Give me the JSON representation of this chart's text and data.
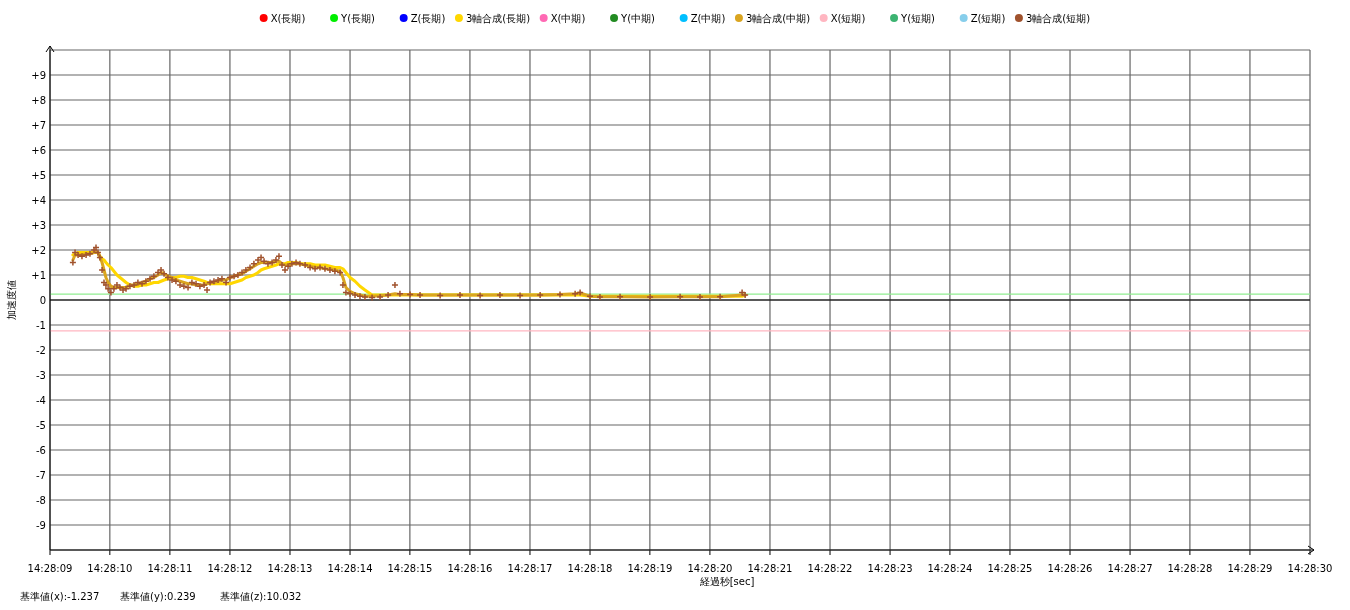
{
  "chart_data": {
    "type": "line",
    "xlabel": "経過秒[sec]",
    "ylabel": "加速度値",
    "legend": "top",
    "grid": true,
    "xlim": [
      14.469167,
      14.475
    ],
    "xticks": [
      {
        "value": 14.469167,
        "label": "14:28:09"
      },
      {
        "value": 14.469444,
        "label": "14:28:10"
      },
      {
        "value": 14.469722,
        "label": "14:28:11"
      },
      {
        "value": 14.47,
        "label": "14:28:12"
      },
      {
        "value": 14.470278,
        "label": "14:28:13"
      },
      {
        "value": 14.470556,
        "label": "14:28:14"
      },
      {
        "value": 14.470833,
        "label": "14:28:15"
      },
      {
        "value": 14.471111,
        "label": "14:28:16"
      },
      {
        "value": 14.471389,
        "label": "14:28:17"
      },
      {
        "value": 14.471667,
        "label": "14:28:18"
      },
      {
        "value": 14.471944,
        "label": "14:28:19"
      },
      {
        "value": 14.472222,
        "label": "14:28:20"
      },
      {
        "value": 14.4725,
        "label": "14:28:21"
      },
      {
        "value": 14.472778,
        "label": "14:28:22"
      },
      {
        "value": 14.473056,
        "label": "14:28:23"
      },
      {
        "value": 14.473333,
        "label": "14:28:24"
      },
      {
        "value": 14.473611,
        "label": "14:28:25"
      },
      {
        "value": 14.473889,
        "label": "14:28:26"
      },
      {
        "value": 14.474167,
        "label": "14:28:27"
      },
      {
        "value": 14.474444,
        "label": "14:28:28"
      },
      {
        "value": 14.474722,
        "label": "14:28:29"
      },
      {
        "value": 14.475,
        "label": "14:28:30"
      }
    ],
    "ylim": [
      -10,
      10
    ],
    "yticks": [
      {
        "value": -10,
        "label": null
      },
      -9,
      -8,
      -7,
      -6,
      -5,
      -4,
      -3,
      -2,
      -1,
      0,
      {
        "value": 1,
        "label": "+1"
      },
      {
        "value": 2,
        "label": "+2"
      },
      {
        "value": 3,
        "label": "+3"
      },
      {
        "value": 4,
        "label": "+4"
      },
      {
        "value": 5,
        "label": "+5"
      },
      {
        "value": 6,
        "label": "+6"
      },
      {
        "value": 7,
        "label": "+7"
      },
      {
        "value": 8,
        "label": "+8"
      },
      {
        "value": 9,
        "label": "+9"
      },
      {
        "value": 10,
        "label": null
      }
    ],
    "x": [
      14.469273,
      14.469283,
      14.469297,
      14.469315,
      14.469334,
      14.469352,
      14.469371,
      14.46938,
      14.469389,
      14.469398,
      14.469408,
      14.469417,
      14.469426,
      14.469436,
      14.469449,
      14.469463,
      14.469477,
      14.469491,
      14.469505,
      14.469519,
      14.469537,
      14.469556,
      14.469574,
      14.469593,
      14.469611,
      14.46963,
      14.469648,
      14.469667,
      14.469681,
      14.469695,
      14.469713,
      14.469732,
      14.46975,
      14.469769,
      14.469787,
      14.469806,
      14.469824,
      14.469843,
      14.469861,
      14.46988,
      14.469894,
      14.469908,
      14.469926,
      14.469945,
      14.469963,
      14.469982,
      14.47,
      14.470019,
      14.470037,
      14.470056,
      14.470074,
      14.470093,
      14.470111,
      14.47013,
      14.470144,
      14.470158,
      14.470176,
      14.470195,
      14.470213,
      14.470227,
      14.470241,
      14.470255,
      14.470269,
      14.470287,
      14.470306,
      14.470324,
      14.470348,
      14.470371,
      14.470394,
      14.470417,
      14.47044,
      14.470463,
      14.470486,
      14.47051,
      14.470523,
      14.470537,
      14.470556,
      14.470579,
      14.470602,
      14.470625,
      14.470658,
      14.470695,
      14.470732,
      14.470764,
      14.470787,
      14.470834,
      14.47088,
      14.470973,
      14.471065,
      14.471158,
      14.47125,
      14.471343,
      14.471436,
      14.471528,
      14.471598,
      14.471621,
      14.471667,
      14.471713,
      14.471806,
      14.471945,
      14.472084,
      14.472176,
      14.472269,
      14.472371,
      14.472385
    ],
    "series": [
      {
        "name": "X(長期)",
        "color": "#ff0000",
        "type": "line",
        "values": [
          null,
          null,
          null,
          null,
          null,
          null,
          null,
          null,
          null,
          null,
          null,
          null,
          null,
          null,
          null,
          null,
          null,
          null,
          null,
          null,
          null,
          null,
          null,
          null,
          null,
          null,
          null,
          null,
          null,
          null,
          null,
          null,
          null,
          null,
          null,
          null,
          null,
          null,
          null,
          null,
          null,
          null,
          null,
          null,
          null,
          null,
          null,
          null,
          null,
          null,
          null,
          null,
          null,
          null,
          null,
          null,
          null,
          null,
          null,
          null,
          null,
          null,
          null,
          null,
          null,
          null,
          null,
          null,
          null,
          null,
          null,
          null,
          null,
          null,
          null,
          null,
          null,
          null,
          null,
          null,
          null,
          null,
          null,
          null,
          null,
          null,
          null,
          null,
          null,
          null,
          null,
          null,
          null,
          null,
          null,
          null,
          null,
          null,
          null,
          null,
          null,
          null,
          null,
          null,
          null
        ]
      },
      {
        "name": "Y(長期)",
        "color": "#00ee00",
        "type": "line",
        "values": [
          null,
          null,
          null,
          null,
          null,
          null,
          null,
          null,
          null,
          null,
          null,
          null,
          null,
          null,
          null,
          null,
          null,
          null,
          null,
          null,
          null,
          null,
          null,
          null,
          null,
          null,
          null,
          null,
          null,
          null,
          null,
          null,
          null,
          null,
          null,
          null,
          null,
          null,
          null,
          null,
          null,
          null,
          null,
          null,
          null,
          null,
          null,
          null,
          null,
          null,
          null,
          null,
          null,
          null,
          null,
          null,
          null,
          null,
          null,
          null,
          null,
          null,
          null,
          null,
          null,
          null,
          null,
          null,
          null,
          null,
          null,
          null,
          null,
          null,
          null,
          null,
          null,
          null,
          null,
          null,
          null,
          null,
          null,
          null,
          null,
          null,
          null,
          null,
          null,
          null,
          null,
          null,
          null,
          null,
          null,
          null,
          null,
          null,
          null,
          null,
          null,
          null,
          null,
          null,
          null
        ]
      },
      {
        "name": "Z(長期)",
        "color": "#0000ff",
        "type": "line",
        "values": [
          null,
          null,
          null,
          null,
          null,
          null,
          null,
          null,
          null,
          null,
          null,
          null,
          null,
          null,
          null,
          null,
          null,
          null,
          null,
          null,
          null,
          null,
          null,
          null,
          null,
          null,
          null,
          null,
          null,
          null,
          null,
          null,
          null,
          null,
          null,
          null,
          null,
          null,
          null,
          null,
          null,
          null,
          null,
          null,
          null,
          null,
          null,
          null,
          null,
          null,
          null,
          null,
          null,
          null,
          null,
          null,
          null,
          null,
          null,
          null,
          null,
          null,
          null,
          null,
          null,
          null,
          null,
          null,
          null,
          null,
          null,
          null,
          null,
          null,
          null,
          null,
          null,
          null,
          null,
          null,
          null,
          null,
          null,
          null,
          null,
          null,
          null,
          null,
          null,
          null,
          null,
          null,
          null,
          null,
          null,
          null,
          null,
          null,
          null,
          null,
          null,
          null,
          null,
          null,
          null
        ]
      },
      {
        "name": "3軸合成(長期)",
        "color": "#ffd700",
        "type": "line",
        "values": [
          1.8,
          1.85,
          1.9,
          1.9,
          1.9,
          1.9,
          1.9,
          1.9,
          1.9,
          1.75,
          1.65,
          1.6,
          1.5,
          1.4,
          1.3,
          1.15,
          1.0,
          0.9,
          0.8,
          0.7,
          0.6,
          0.55,
          0.55,
          0.6,
          0.6,
          0.65,
          0.7,
          0.7,
          0.75,
          0.8,
          0.85,
          0.9,
          0.9,
          0.95,
          0.95,
          0.9,
          0.9,
          0.85,
          0.8,
          0.75,
          0.7,
          0.65,
          0.65,
          0.65,
          0.65,
          0.65,
          0.65,
          0.7,
          0.75,
          0.8,
          0.9,
          0.95,
          1.0,
          1.1,
          1.2,
          1.25,
          1.3,
          1.35,
          1.4,
          1.45,
          1.45,
          1.45,
          1.5,
          1.5,
          1.5,
          1.45,
          1.45,
          1.45,
          1.4,
          1.4,
          1.4,
          1.35,
          1.3,
          1.3,
          1.25,
          1.1,
          0.9,
          0.75,
          0.55,
          0.4,
          0.2,
          0.2,
          0.2,
          0.2,
          0.2,
          0.2,
          0.2,
          0.2,
          0.2,
          0.2,
          0.2,
          0.2,
          0.2,
          0.2,
          0.2,
          0.2,
          0.15,
          0.15,
          0.15,
          0.15,
          0.15,
          0.15,
          0.15,
          0.15,
          0.2
        ]
      },
      {
        "name": "X(中期)",
        "color": "#ff69b4",
        "type": "line",
        "values": [
          null,
          null,
          null,
          null,
          null,
          null,
          null,
          null,
          null,
          null,
          null,
          null,
          null,
          null,
          null,
          null,
          null,
          null,
          null,
          null,
          null,
          null,
          null,
          null,
          null,
          null,
          null,
          null,
          null,
          null,
          null,
          null,
          null,
          null,
          null,
          null,
          null,
          null,
          null,
          null,
          null,
          null,
          null,
          null,
          null,
          null,
          null,
          null,
          null,
          null,
          null,
          null,
          null,
          null,
          null,
          null,
          null,
          null,
          null,
          null,
          null,
          null,
          null,
          null,
          null,
          null,
          null,
          null,
          null,
          null,
          null,
          null,
          null,
          null,
          null,
          null,
          null,
          null,
          null,
          null,
          null,
          null,
          null,
          null,
          null,
          null,
          null,
          null,
          null,
          null,
          null,
          null,
          null,
          null,
          null,
          null,
          null,
          null,
          null,
          null,
          null,
          null,
          null,
          null,
          null
        ]
      },
      {
        "name": "Y(中期)",
        "color": "#228b22",
        "type": "line",
        "values": [
          null,
          null,
          null,
          null,
          null,
          null,
          null,
          null,
          null,
          null,
          null,
          null,
          null,
          null,
          null,
          null,
          null,
          null,
          null,
          null,
          null,
          null,
          null,
          null,
          null,
          null,
          null,
          null,
          null,
          null,
          null,
          null,
          null,
          null,
          null,
          null,
          null,
          null,
          null,
          null,
          null,
          null,
          null,
          null,
          null,
          null,
          null,
          null,
          null,
          null,
          null,
          null,
          null,
          null,
          null,
          null,
          null,
          null,
          null,
          null,
          null,
          null,
          null,
          null,
          null,
          null,
          null,
          null,
          null,
          null,
          null,
          null,
          null,
          null,
          null,
          null,
          null,
          null,
          null,
          null,
          null,
          null,
          null,
          null,
          null,
          null,
          null,
          null,
          null,
          null,
          null,
          null,
          null,
          null,
          null,
          null,
          null,
          null,
          null,
          null,
          null,
          null,
          null,
          null,
          null
        ]
      },
      {
        "name": "Z(中期)",
        "color": "#00bfff",
        "type": "line",
        "values": [
          null,
          null,
          null,
          null,
          null,
          null,
          null,
          null,
          null,
          null,
          null,
          null,
          null,
          null,
          null,
          null,
          null,
          null,
          null,
          null,
          null,
          null,
          null,
          null,
          null,
          null,
          null,
          null,
          null,
          null,
          null,
          null,
          null,
          null,
          null,
          null,
          null,
          null,
          null,
          null,
          null,
          null,
          null,
          null,
          null,
          null,
          null,
          null,
          null,
          null,
          null,
          null,
          null,
          null,
          null,
          null,
          null,
          null,
          null,
          null,
          null,
          null,
          null,
          null,
          null,
          null,
          null,
          null,
          null,
          null,
          null,
          null,
          null,
          null,
          null,
          null,
          null,
          null,
          null,
          null,
          null,
          null,
          null,
          null,
          null,
          null,
          null,
          null,
          null,
          null,
          null,
          null,
          null,
          null,
          null,
          null,
          null,
          null,
          null,
          null,
          null,
          null,
          null,
          null,
          null
        ]
      },
      {
        "name": "3軸合成(中期)",
        "color": "#daa520",
        "type": "line",
        "values": [
          1.6,
          1.8,
          1.8,
          1.8,
          1.85,
          1.85,
          1.9,
          1.9,
          1.9,
          1.7,
          1.5,
          1.2,
          0.9,
          0.7,
          0.55,
          0.5,
          0.5,
          0.5,
          0.5,
          0.5,
          0.6,
          0.6,
          0.65,
          0.7,
          0.75,
          0.85,
          0.9,
          1.0,
          1.1,
          1.05,
          0.95,
          0.9,
          0.8,
          0.75,
          0.7,
          0.65,
          0.65,
          0.6,
          0.6,
          0.6,
          0.65,
          0.7,
          0.7,
          0.75,
          0.8,
          0.8,
          0.9,
          0.95,
          1.0,
          1.05,
          1.15,
          1.25,
          1.35,
          1.45,
          1.5,
          1.5,
          1.5,
          1.5,
          1.55,
          1.55,
          1.45,
          1.4,
          1.4,
          1.45,
          1.45,
          1.45,
          1.4,
          1.35,
          1.3,
          1.3,
          1.25,
          1.25,
          1.2,
          1.15,
          0.9,
          0.5,
          0.35,
          0.25,
          0.2,
          0.15,
          0.15,
          0.17,
          0.2,
          0.25,
          0.22,
          0.22,
          0.2,
          0.2,
          0.2,
          0.2,
          0.2,
          0.2,
          0.2,
          0.22,
          0.25,
          0.28,
          0.15,
          0.13,
          0.13,
          0.12,
          0.13,
          0.13,
          0.13,
          0.2,
          0.2
        ]
      },
      {
        "name": "X(短期)",
        "color": "#ffb6c1",
        "type": "line",
        "values": [
          null,
          null,
          null,
          null,
          null,
          null,
          null,
          null,
          null,
          null,
          null,
          null,
          null,
          null,
          null,
          null,
          null,
          null,
          null,
          null,
          null,
          null,
          null,
          null,
          null,
          null,
          null,
          null,
          null,
          null,
          null,
          null,
          null,
          null,
          null,
          null,
          null,
          null,
          null,
          null,
          null,
          null,
          null,
          null,
          null,
          null,
          null,
          null,
          null,
          null,
          null,
          null,
          null,
          null,
          null,
          null,
          null,
          null,
          null,
          null,
          null,
          null,
          null,
          null,
          null,
          null,
          null,
          null,
          null,
          null,
          null,
          null,
          null,
          null,
          null,
          null,
          null,
          null,
          null,
          null,
          null,
          null,
          null,
          null,
          null,
          null,
          null,
          null,
          null,
          null,
          null,
          null,
          null,
          null,
          null,
          null,
          null,
          null,
          null,
          null,
          null,
          null,
          null,
          null,
          null
        ]
      },
      {
        "name": "Y(短期)",
        "color": "#3cb371",
        "type": "line",
        "values": [
          null,
          null,
          null,
          null,
          null,
          null,
          null,
          null,
          null,
          null,
          null,
          null,
          null,
          null,
          null,
          null,
          null,
          null,
          null,
          null,
          null,
          null,
          null,
          null,
          null,
          null,
          null,
          null,
          null,
          null,
          null,
          null,
          null,
          null,
          null,
          null,
          null,
          null,
          null,
          null,
          null,
          null,
          null,
          null,
          null,
          null,
          null,
          null,
          null,
          null,
          null,
          null,
          null,
          null,
          null,
          null,
          null,
          null,
          null,
          null,
          null,
          null,
          null,
          null,
          null,
          null,
          null,
          null,
          null,
          null,
          null,
          null,
          null,
          null,
          null,
          null,
          null,
          null,
          null,
          null,
          null,
          null,
          null,
          null,
          null,
          null,
          null,
          null,
          null,
          null,
          null,
          null,
          null,
          null,
          null,
          null,
          null,
          null,
          null,
          null,
          null,
          null,
          null,
          null,
          null
        ]
      },
      {
        "name": "Z(短期)",
        "color": "#87ceeb",
        "type": "line",
        "values": [
          null,
          null,
          null,
          null,
          null,
          null,
          null,
          null,
          null,
          null,
          null,
          null,
          null,
          null,
          null,
          null,
          null,
          null,
          null,
          null,
          null,
          null,
          null,
          null,
          null,
          null,
          null,
          null,
          null,
          null,
          null,
          null,
          null,
          null,
          null,
          null,
          null,
          null,
          null,
          null,
          null,
          null,
          null,
          null,
          null,
          null,
          null,
          null,
          null,
          null,
          null,
          null,
          null,
          null,
          null,
          null,
          null,
          null,
          null,
          null,
          null,
          null,
          null,
          null,
          null,
          null,
          null,
          null,
          null,
          null,
          null,
          null,
          null,
          null,
          null,
          null,
          null,
          null,
          null,
          null,
          null,
          null,
          null,
          null,
          null,
          null,
          null,
          null,
          null,
          null,
          null,
          null,
          null,
          null,
          null,
          null,
          null,
          null,
          null,
          null,
          null,
          null,
          null,
          null,
          null
        ]
      },
      {
        "name": "3軸合成(短期)",
        "color": "#a0522d",
        "type": "scatter",
        "marker": "cross",
        "values": [
          1.5,
          1.9,
          1.8,
          1.75,
          1.8,
          1.85,
          2.0,
          2.1,
          1.9,
          1.7,
          1.2,
          0.7,
          0.6,
          0.45,
          0.3,
          0.45,
          0.6,
          0.5,
          0.4,
          0.45,
          0.55,
          0.6,
          0.7,
          0.65,
          0.75,
          0.85,
          0.95,
          1.1,
          1.2,
          1.05,
          0.9,
          0.8,
          0.75,
          0.6,
          0.55,
          0.5,
          0.7,
          0.65,
          0.55,
          0.6,
          0.4,
          0.7,
          0.75,
          0.8,
          0.85,
          0.7,
          0.9,
          0.95,
          1.0,
          1.1,
          1.2,
          1.3,
          1.45,
          1.6,
          1.7,
          1.55,
          1.45,
          1.5,
          1.6,
          1.75,
          1.4,
          1.2,
          1.35,
          1.45,
          1.5,
          1.45,
          1.4,
          1.3,
          1.25,
          1.3,
          1.25,
          1.2,
          1.15,
          1.1,
          0.6,
          0.3,
          0.25,
          0.2,
          0.15,
          0.12,
          0.1,
          0.12,
          0.2,
          0.6,
          0.25,
          0.22,
          0.2,
          0.18,
          0.2,
          0.18,
          0.2,
          0.18,
          0.2,
          0.22,
          0.25,
          0.3,
          0.15,
          0.12,
          0.13,
          0.12,
          0.13,
          0.12,
          0.13,
          0.3,
          0.2
        ]
      }
    ],
    "ref_lines": [
      {
        "axis": "y",
        "value": 0,
        "color": "#000000"
      },
      {
        "axis": "y",
        "value": 0.239,
        "color": "#90ee90"
      },
      {
        "axis": "y",
        "value": -1.237,
        "color": "#ffb6c1"
      }
    ],
    "annotations": [
      "基準値(x):-1.237",
      "基準値(y):0.239",
      "基準値(z):10.032"
    ]
  }
}
